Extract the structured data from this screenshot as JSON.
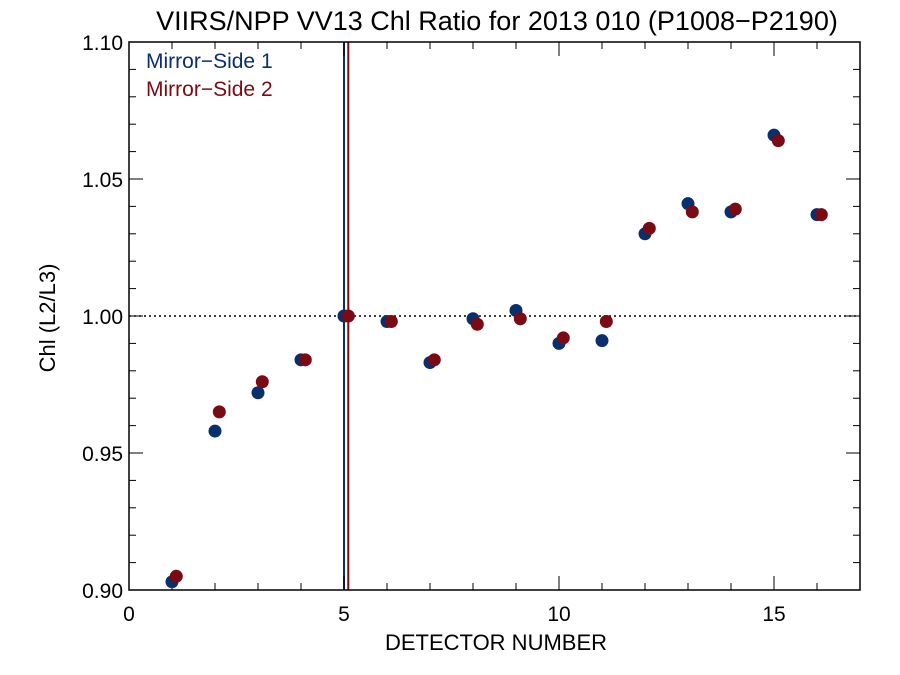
{
  "chart_data": {
    "type": "scatter",
    "title": "VIIRS/NPP VV13 Chl Ratio for 2013 010 (P1008−P2190)",
    "xlabel": "DETECTOR NUMBER",
    "ylabel": "Chl (L2/L3)",
    "xlim": [
      0,
      17
    ],
    "ylim": [
      0.9,
      1.1
    ],
    "xticks": [
      0,
      5,
      10,
      15
    ],
    "xtick_labels": [
      "0",
      "5",
      "10",
      "15"
    ],
    "yticks": [
      0.9,
      0.95,
      1.0,
      1.05,
      1.1
    ],
    "ytick_labels": [
      "0.90",
      "0.95",
      "1.00",
      "1.05",
      "1.10"
    ],
    "reference_line_y": 1.0,
    "reference_line_style": "dotted",
    "vertical_lines": [
      {
        "x": 5.0,
        "color": "#0a2f6e"
      },
      {
        "x": 5.1,
        "color": "#7a0a14"
      }
    ],
    "legend_position": "top-left",
    "grid": false,
    "series": [
      {
        "name": "Mirror−Side 1",
        "color": "#0a2f6e",
        "x": [
          1,
          2,
          3,
          4,
          5,
          6,
          7,
          8,
          9,
          10,
          11,
          12,
          13,
          14,
          15,
          16
        ],
        "y": [
          0.903,
          0.958,
          0.972,
          0.984,
          1.0,
          0.998,
          0.983,
          0.999,
          1.002,
          0.99,
          0.991,
          1.03,
          1.041,
          1.038,
          1.066,
          1.037
        ]
      },
      {
        "name": "Mirror−Side 2",
        "color": "#7a0a14",
        "x": [
          1.1,
          2.1,
          3.1,
          4.1,
          5.1,
          6.1,
          7.1,
          8.1,
          9.1,
          10.1,
          11.1,
          12.1,
          13.1,
          14.1,
          15.1,
          16.1
        ],
        "y": [
          0.905,
          0.965,
          0.976,
          0.984,
          1.0,
          0.998,
          0.984,
          0.997,
          0.999,
          0.992,
          0.998,
          1.032,
          1.038,
          1.039,
          1.064,
          1.037
        ]
      }
    ]
  }
}
